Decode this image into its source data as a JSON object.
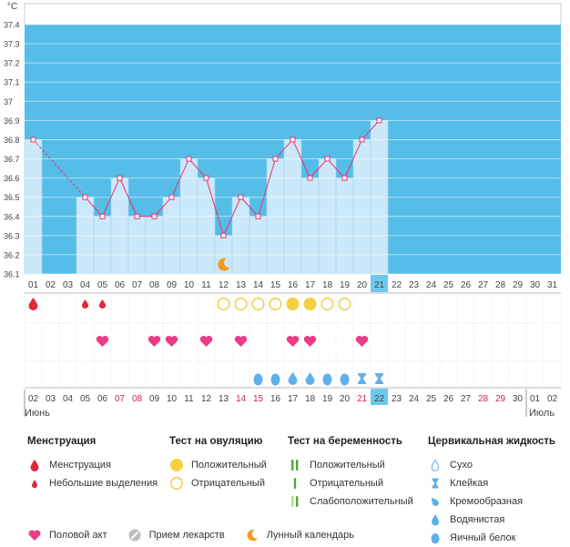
{
  "colors": {
    "sky": "#55bde8",
    "bar": "#cbe9fa",
    "bar_edge": "#9fd4f2",
    "line": "#e8326e",
    "highlight": "#6cc8ef",
    "pink_day": "#d0205f",
    "heart": "#ee3a89",
    "menses": "#e0283a",
    "ovu": "#f7d040",
    "preg_dark": "#4ea93a",
    "preg_light": "#b6d98a",
    "cerv": "#5fb0ea"
  },
  "chart_data": {
    "type": "line",
    "unit": "°C",
    "ylim": [
      36.1,
      37.4
    ],
    "y_ticks": [
      "37.4",
      "37.3",
      "37.2",
      "37.1",
      "37",
      "36.9",
      "36.8",
      "36.7",
      "36.6",
      "36.5",
      "36.4",
      "36.3",
      "36.2",
      "36.1"
    ],
    "cycle_days": [
      "01",
      "02",
      "03",
      "04",
      "05",
      "06",
      "07",
      "08",
      "09",
      "10",
      "11",
      "12",
      "13",
      "14",
      "15",
      "16",
      "17",
      "18",
      "19",
      "20",
      "21",
      "22",
      "23",
      "24",
      "25",
      "26",
      "27",
      "28",
      "29",
      "30",
      "31"
    ],
    "temperatures": [
      36.8,
      null,
      null,
      36.5,
      36.4,
      36.6,
      36.4,
      36.4,
      36.5,
      36.7,
      36.6,
      36.3,
      36.5,
      36.4,
      36.7,
      36.8,
      36.6,
      36.7,
      36.6,
      36.8,
      36.9,
      null,
      null,
      null,
      null,
      null,
      null,
      null,
      null,
      null,
      null
    ],
    "today_index": 20,
    "dates": [
      "02",
      "03",
      "04",
      "05",
      "06",
      "07",
      "08",
      "09",
      "10",
      "11",
      "12",
      "13",
      "14",
      "15",
      "16",
      "17",
      "18",
      "19",
      "20",
      "21",
      "22",
      "23",
      "24",
      "25",
      "26",
      "27",
      "28",
      "29",
      "30",
      "01",
      "02"
    ],
    "weekend_date_indices": [
      5,
      6,
      12,
      13,
      19,
      26,
      27
    ],
    "month_start": "Июнь",
    "month_end": "Июль",
    "menstruation_days": [
      {
        "i": 0,
        "kind": "heavy"
      },
      {
        "i": 3,
        "kind": "light"
      },
      {
        "i": 4,
        "kind": "light"
      }
    ],
    "moon_index": 11,
    "ovulation_test": [
      {
        "i": 11,
        "pos": false
      },
      {
        "i": 12,
        "pos": false
      },
      {
        "i": 13,
        "pos": false
      },
      {
        "i": 14,
        "pos": false
      },
      {
        "i": 15,
        "pos": true
      },
      {
        "i": 16,
        "pos": true
      },
      {
        "i": 17,
        "pos": false
      },
      {
        "i": 18,
        "pos": false
      }
    ],
    "intercourse_days": [
      4,
      7,
      8,
      10,
      12,
      15,
      16,
      19
    ],
    "cervical_fluid": [
      {
        "i": 13,
        "kind": "egg"
      },
      {
        "i": 14,
        "kind": "egg"
      },
      {
        "i": 15,
        "kind": "watery"
      },
      {
        "i": 16,
        "kind": "watery"
      },
      {
        "i": 17,
        "kind": "egg"
      },
      {
        "i": 18,
        "kind": "egg"
      },
      {
        "i": 19,
        "kind": "sticky"
      },
      {
        "i": 20,
        "kind": "sticky"
      }
    ]
  },
  "legend": {
    "menstruation": {
      "title": "Менструация",
      "items": [
        "Менструация",
        "Небольшие выделения"
      ]
    },
    "ovulation": {
      "title": "Тест на овуляцию",
      "items": [
        "Положительный",
        "Отрицательный"
      ]
    },
    "pregnancy": {
      "title": "Тест на беременность",
      "items": [
        "Положительный",
        "Отрицательный",
        "Слабоположительный"
      ]
    },
    "cervical": {
      "title": "Цервикальная жидкость",
      "items": [
        "Сухо",
        "Клейкая",
        "Кремообразная",
        "Водянистая",
        "Яичный белок"
      ]
    },
    "other": [
      "Половой акт",
      "Прием лекарств",
      "Лунный календарь"
    ]
  }
}
